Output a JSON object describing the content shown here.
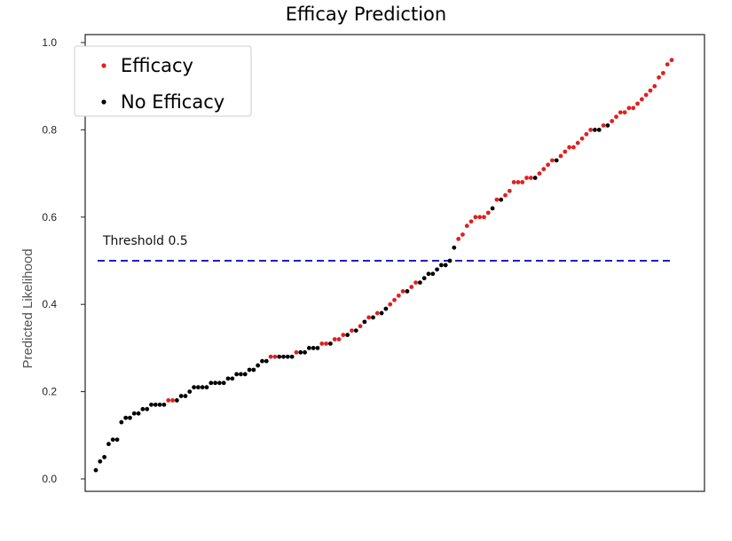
{
  "chart_data": {
    "type": "scatter",
    "title": "Efficay Prediction",
    "xlabel": "",
    "ylabel": "Predicted Likelihood",
    "ylim": [
      0.0,
      1.0
    ],
    "yticks": [
      "0.0",
      "0.2",
      "0.4",
      "0.6",
      "0.8",
      "1.0"
    ],
    "grid": false,
    "legend_position": "top-left",
    "threshold": {
      "value": 0.5,
      "label": "Threshold 0.5",
      "color": "#1f1fbf"
    },
    "series": [
      {
        "name": "Efficacy",
        "color": "#e02020",
        "values": [
          0.18,
          0.18,
          0.28,
          0.28,
          0.29,
          0.31,
          0.31,
          0.32,
          0.32,
          0.33,
          0.34,
          0.35,
          0.37,
          0.38,
          0.4,
          0.41,
          0.42,
          0.43,
          0.44,
          0.45,
          0.55,
          0.56,
          0.58,
          0.59,
          0.6,
          0.6,
          0.6,
          0.61,
          0.64,
          0.65,
          0.66,
          0.68,
          0.68,
          0.68,
          0.69,
          0.69,
          0.7,
          0.71,
          0.72,
          0.73,
          0.74,
          0.75,
          0.76,
          0.76,
          0.77,
          0.78,
          0.79,
          0.8,
          0.81,
          0.82,
          0.83,
          0.84,
          0.84,
          0.85,
          0.85,
          0.86,
          0.87,
          0.88,
          0.89,
          0.9,
          0.92,
          0.93,
          0.95,
          0.96
        ]
      },
      {
        "name": "No Efficacy",
        "color": "#000000",
        "values": [
          0.02,
          0.04,
          0.05,
          0.08,
          0.09,
          0.09,
          0.13,
          0.14,
          0.14,
          0.15,
          0.15,
          0.16,
          0.16,
          0.17,
          0.17,
          0.17,
          0.17,
          0.18,
          0.19,
          0.19,
          0.2,
          0.21,
          0.21,
          0.21,
          0.21,
          0.22,
          0.22,
          0.22,
          0.22,
          0.23,
          0.23,
          0.24,
          0.24,
          0.24,
          0.25,
          0.25,
          0.26,
          0.27,
          0.27,
          0.28,
          0.28,
          0.28,
          0.28,
          0.29,
          0.29,
          0.3,
          0.3,
          0.3,
          0.31,
          0.33,
          0.34,
          0.36,
          0.37,
          0.38,
          0.39,
          0.43,
          0.45,
          0.46,
          0.47,
          0.47,
          0.48,
          0.49,
          0.49,
          0.5,
          0.53,
          0.62,
          0.64,
          0.69,
          0.73,
          0.8,
          0.8,
          0.81
        ]
      }
    ],
    "legend": [
      {
        "label": "Efficacy",
        "color": "#e02020"
      },
      {
        "label": "No Efficacy",
        "color": "#000000"
      }
    ]
  }
}
